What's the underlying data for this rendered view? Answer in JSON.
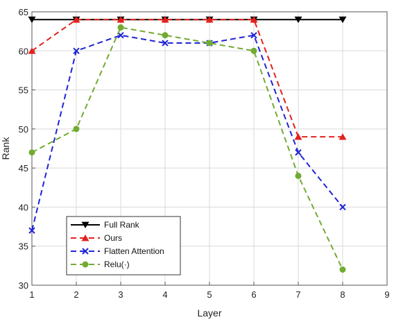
{
  "chart_data": {
    "type": "line",
    "xlabel": "Layer",
    "ylabel": "Rank",
    "xlim": [
      1,
      9
    ],
    "ylim": [
      30,
      65
    ],
    "xticks": [
      1,
      2,
      3,
      4,
      5,
      6,
      7,
      8,
      9
    ],
    "yticks": [
      30,
      35,
      40,
      45,
      50,
      55,
      60,
      65
    ],
    "grid": true,
    "legend_position": "bottom-left",
    "x": [
      1,
      2,
      3,
      4,
      5,
      6,
      7,
      8
    ],
    "series": [
      {
        "name": "Full Rank",
        "values": [
          64,
          64,
          64,
          64,
          64,
          64,
          64,
          64
        ],
        "color": "#000000",
        "dash": "solid",
        "marker": "triangle-down"
      },
      {
        "name": "Ours",
        "values": [
          60,
          64,
          64,
          64,
          64,
          64,
          49,
          49
        ],
        "color": "#e3211c",
        "dash": "dashed",
        "marker": "triangle-up"
      },
      {
        "name": "Flatten Attention",
        "values": [
          37,
          60,
          62,
          61,
          61,
          62,
          47,
          40
        ],
        "color": "#1f24d6",
        "dash": "dashed",
        "marker": "x"
      },
      {
        "name": "Relu(·)",
        "values": [
          47,
          50,
          63,
          62,
          61,
          60,
          44,
          32
        ],
        "color": "#72ab32",
        "dash": "dashed",
        "marker": "circle"
      }
    ]
  }
}
